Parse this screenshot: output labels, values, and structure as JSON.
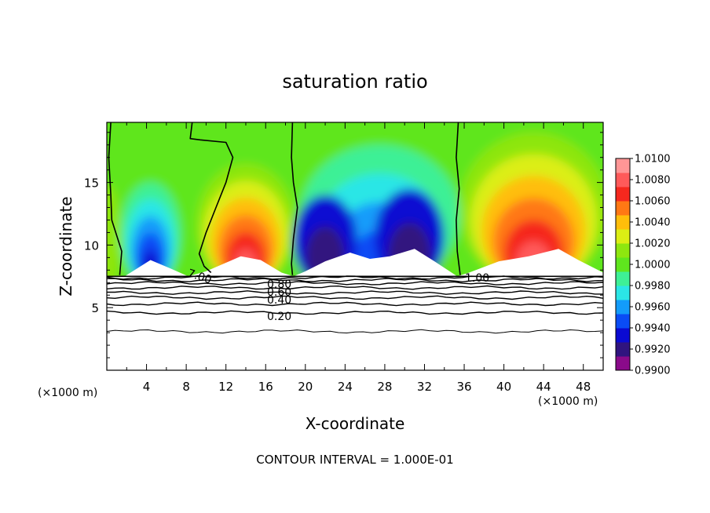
{
  "chart_data": {
    "type": "heatmap",
    "title": "saturation ratio",
    "xlabel": "X-coordinate",
    "ylabel": "Z-coordinate",
    "x_unit_left": "(×1000 m)",
    "x_unit_right": "(×1000 m)",
    "xlim": [
      0,
      50
    ],
    "ylim": [
      0,
      19.8
    ],
    "x_ticks": [
      4,
      8,
      12,
      16,
      20,
      24,
      28,
      32,
      36,
      40,
      44,
      48
    ],
    "y_ticks": [
      5,
      10,
      15
    ],
    "colorbar": {
      "labels": [
        "1.0100",
        "1.0080",
        "1.0060",
        "1.0040",
        "1.0020",
        "1.0000",
        "0.9980",
        "0.9960",
        "0.9940",
        "0.9920",
        "0.9900"
      ],
      "colors": [
        "#8a0a8a",
        "#30147f",
        "#0a0ad2",
        "#0a4cf5",
        "#139cfa",
        "#2be6e6",
        "#3ef096",
        "#5fe61e",
        "#8ee60f",
        "#dcee14",
        "#ffbe0a",
        "#ff7814",
        "#f5281e",
        "#ff5a5a",
        "#ff9696"
      ]
    },
    "contour_labels": [
      "7.00",
      "0.80",
      "0.60",
      "0.40",
      "0.20",
      "1.00"
    ],
    "contour_interval_text": "CONTOUR INTERVAL = 1.000E-01",
    "lower_contour_levels_km": [
      3.1,
      4.6,
      5.3,
      5.8,
      6.2,
      6.6,
      6.95,
      7.2,
      7.4
    ],
    "cloud_base_km": 7.5,
    "zones": [
      {
        "x_range": [
          0,
          1.5
        ],
        "fill": "yellow-green"
      },
      {
        "x_range": [
          1.5,
          8.2
        ],
        "core_x": 4.4,
        "min_ratio": 0.994,
        "core_top_km": 13.0
      },
      {
        "x_range": [
          8.2,
          18.8
        ],
        "core_x": 14.3,
        "max_ratio": 1.006,
        "core_top_km": 11.5
      },
      {
        "x_range": [
          18.8,
          35.5
        ],
        "core_x": 28,
        "min_ratio": 0.992,
        "core_top_km": 15.0
      },
      {
        "x_range": [
          35.5,
          50
        ],
        "core_x": 43,
        "max_ratio": 1.007,
        "core_top_km": 13.5
      }
    ]
  }
}
